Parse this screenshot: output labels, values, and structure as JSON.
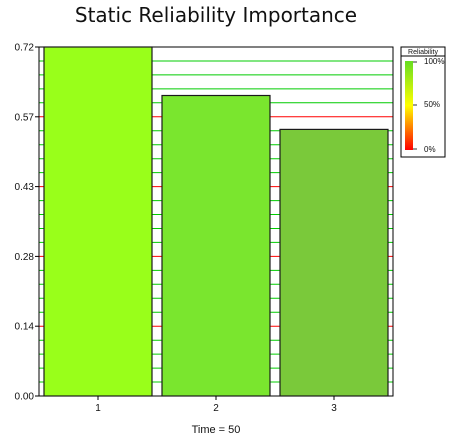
{
  "chart_data": {
    "type": "bar",
    "title": "Static Reliability Importance",
    "xlabel": "Time = 50",
    "ylabel": "",
    "categories": [
      "1",
      "2",
      "3"
    ],
    "values": [
      0.72,
      0.62,
      0.55
    ],
    "bar_colors": [
      "#99ff1a",
      "#7ae62e",
      "#7ac93a"
    ],
    "ylim": [
      0,
      0.72
    ],
    "yticks": [
      "0.00",
      "0.14",
      "0.28",
      "0.43",
      "0.57",
      "0.72"
    ],
    "grid": true,
    "grid_color_low": "#ff0000",
    "grid_color_high": "#00cc00",
    "legend": {
      "title": "Reliability",
      "placement": "top-right",
      "labels": [
        "100%",
        "50%",
        "0%"
      ],
      "gradient_colors": [
        "#66dd22",
        "#ffff00",
        "#ff0000"
      ]
    }
  }
}
